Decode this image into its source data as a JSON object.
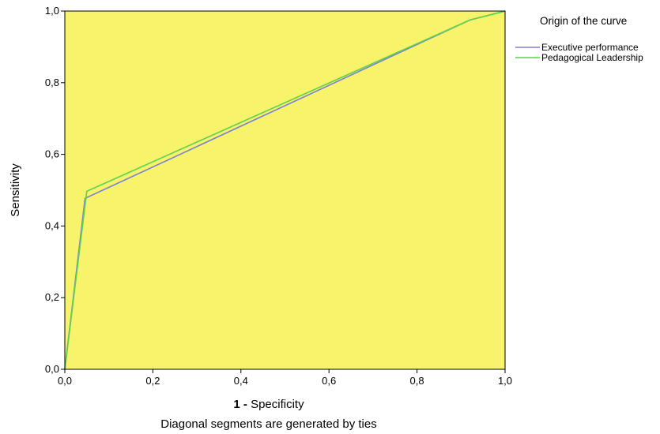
{
  "chart_data": {
    "type": "line",
    "xlabel_prefix": "1 -",
    "xlabel_main": "Specificity",
    "ylabel": "Sensitivity",
    "footnote": "Diagonal segments are generated by ties",
    "xlim": [
      0,
      1
    ],
    "ylim": [
      0,
      1
    ],
    "x_ticks": [
      "0,0",
      "0,2",
      "0,4",
      "0,6",
      "0,8",
      "1,0"
    ],
    "y_ticks": [
      "0,0",
      "0,2",
      "0,4",
      "0,6",
      "0,8",
      "1,0"
    ],
    "background_color": "#f7f36b",
    "legend": {
      "title": "Origin of the curve",
      "placement": "right"
    },
    "series": [
      {
        "name": "Executive performance",
        "color": "#7b7fd6",
        "x": [
          0,
          0.046,
          0.92,
          1.0
        ],
        "y": [
          0,
          0.477,
          0.975,
          1.0
        ]
      },
      {
        "name": "Pedagogical Leadership",
        "color": "#5ed14f",
        "x": [
          0,
          0.05,
          0.92,
          1.0
        ],
        "y": [
          0,
          0.497,
          0.975,
          1.0
        ]
      }
    ]
  }
}
